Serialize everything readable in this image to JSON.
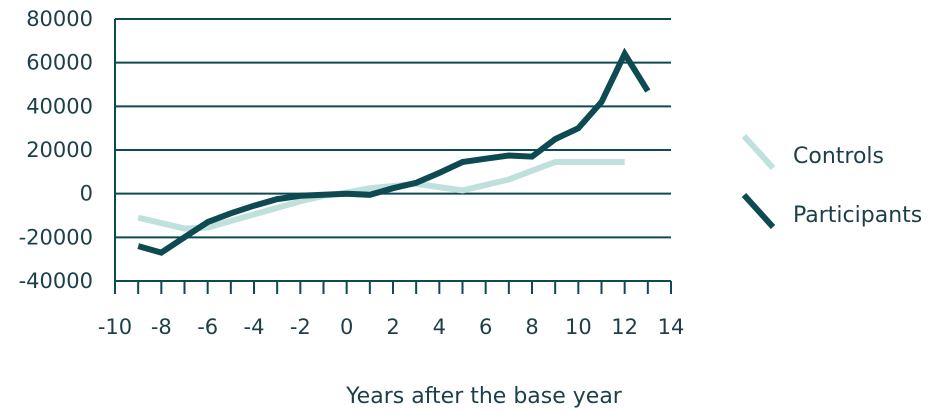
{
  "chart_data": {
    "type": "line",
    "title": "",
    "xlabel": "Years after the base year",
    "ylabel": "",
    "xlim": [
      -10,
      14
    ],
    "ylim": [
      -40000,
      80000
    ],
    "x_ticks": [
      -10,
      -8,
      -6,
      -4,
      -2,
      0,
      2,
      4,
      6,
      8,
      10,
      12,
      14
    ],
    "x_tick_labels": [
      "-10",
      "-8",
      "-6",
      "-4",
      "-2",
      "0",
      "2",
      "4",
      "6",
      "8",
      "10",
      "12",
      "14"
    ],
    "y_ticks": [
      -40000,
      -20000,
      0,
      20000,
      40000,
      60000,
      80000
    ],
    "y_tick_labels": [
      "-40000",
      "-20000",
      "0",
      "20000",
      "40000",
      "60000",
      "80000"
    ],
    "grid": "horizontal",
    "legend_position": "right",
    "series": [
      {
        "name": "Controls",
        "color": "#bfe0dc",
        "x": [
          -9,
          -8,
          -7,
          -6,
          -5,
          -4,
          -3,
          -2,
          -1,
          0,
          1,
          2,
          3,
          4,
          5,
          6,
          7,
          8,
          9,
          10,
          11,
          12
        ],
        "y": [
          -11000,
          -13500,
          -16000,
          -15500,
          -12500,
          -9500,
          -6500,
          -3500,
          -1000,
          500,
          2500,
          3500,
          4500,
          3000,
          1500,
          4000,
          6500,
          10500,
          14500,
          14500,
          14500,
          14500
        ]
      },
      {
        "name": "Participants",
        "color": "#0d4a52",
        "x": [
          -9,
          -8,
          -7,
          -6,
          -5,
          -4,
          -3,
          -2,
          -1,
          0,
          1,
          2,
          3,
          4,
          5,
          6,
          7,
          8,
          9,
          10,
          11,
          12,
          13
        ],
        "y": [
          -24000,
          -27000,
          -20000,
          -13000,
          -9000,
          -5500,
          -2500,
          -1000,
          -500,
          0,
          -500,
          2500,
          5000,
          9500,
          14500,
          16000,
          17500,
          17000,
          25000,
          30000,
          42000,
          64000,
          47000
        ]
      }
    ]
  }
}
